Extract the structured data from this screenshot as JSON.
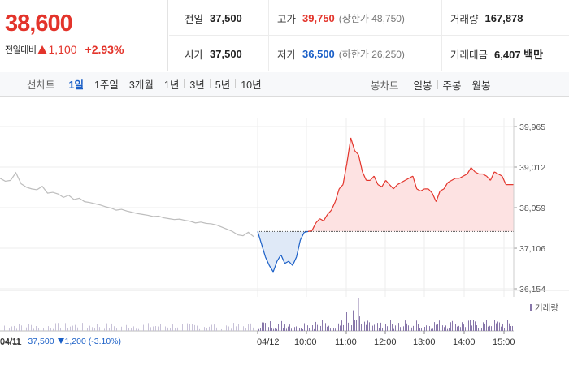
{
  "quote": {
    "price": "38,600",
    "change_label": "전일대비",
    "change_value": "1,100",
    "change_pct": "+2.93%",
    "colors": {
      "up": "#e3342b",
      "down": "#1a5fc7"
    }
  },
  "stats": {
    "prev_close": {
      "label": "전일",
      "value": "37,500"
    },
    "high": {
      "label": "고가",
      "value": "39,750",
      "sub": "(상한가 48,750)"
    },
    "volume": {
      "label": "거래량",
      "value": "167,878"
    },
    "open": {
      "label": "시가",
      "value": "37,500"
    },
    "low": {
      "label": "저가",
      "value": "36,500",
      "sub": "(하한가 26,250)"
    },
    "amount": {
      "label": "거래대금",
      "value": "6,407 백만"
    }
  },
  "toolbar": {
    "line_label": "선차트",
    "periods": [
      "1일",
      "1주일",
      "3개월",
      "1년",
      "3년",
      "5년",
      "10년"
    ],
    "active_period": "1일",
    "candle_label": "봉차트",
    "candles": [
      "일봉",
      "주봉",
      "월봉"
    ]
  },
  "chart_data": {
    "type": "line",
    "y_ticks": [
      "39,965",
      "39,012",
      "38,059",
      "37,106",
      "36,154"
    ],
    "y_tick_values": [
      39965,
      39012,
      38059,
      37106,
      36154
    ],
    "ylim": [
      36154,
      39965
    ],
    "x_ticks": [
      "04/11",
      "04/12",
      "10:00",
      "11:00",
      "12:00",
      "13:00",
      "14:00",
      "15:00"
    ],
    "baseline": 37500,
    "series": [
      {
        "values_prev_day": [
          38750,
          38680,
          38700,
          38880,
          38620,
          38540,
          38500,
          38480,
          38560,
          38400,
          38420,
          38380,
          38300,
          38350,
          38250,
          38280,
          38200,
          38180,
          38150,
          38120,
          38080,
          38050,
          38000,
          38020,
          37980,
          37950,
          37920,
          37900,
          37880,
          37850,
          37860,
          37820,
          37800,
          37780,
          37790,
          37760,
          37740,
          37700,
          37720,
          37690,
          37680,
          37650,
          37600,
          37550,
          37500,
          37420,
          37400,
          37480,
          37380
        ]
      },
      {
        "values_today": [
          37500,
          37200,
          36900,
          36700,
          36550,
          36800,
          36950,
          36750,
          36800,
          36700,
          36900,
          37300,
          37480,
          37500,
          37520,
          37700,
          37800,
          37750,
          37900,
          38000,
          38200,
          38500,
          38600,
          39100,
          39700,
          39400,
          39300,
          38900,
          38700,
          38700,
          38800,
          38600,
          38550,
          38700,
          38600,
          38500,
          38600,
          38650,
          38700,
          38750,
          38800,
          38500,
          38450,
          38500,
          38500,
          38400,
          38200,
          38450,
          38500,
          38650,
          38700,
          38750,
          38750,
          38800,
          38850,
          39000,
          38900,
          38850,
          38850,
          38800,
          38700,
          38900,
          38850,
          38800,
          38600,
          38600,
          38600
        ]
      }
    ],
    "volume_legend": "거래량",
    "prev_info": {
      "date": "04/11",
      "close": "37,500",
      "diff": "1,200",
      "pct": "(-3.10%)"
    }
  }
}
